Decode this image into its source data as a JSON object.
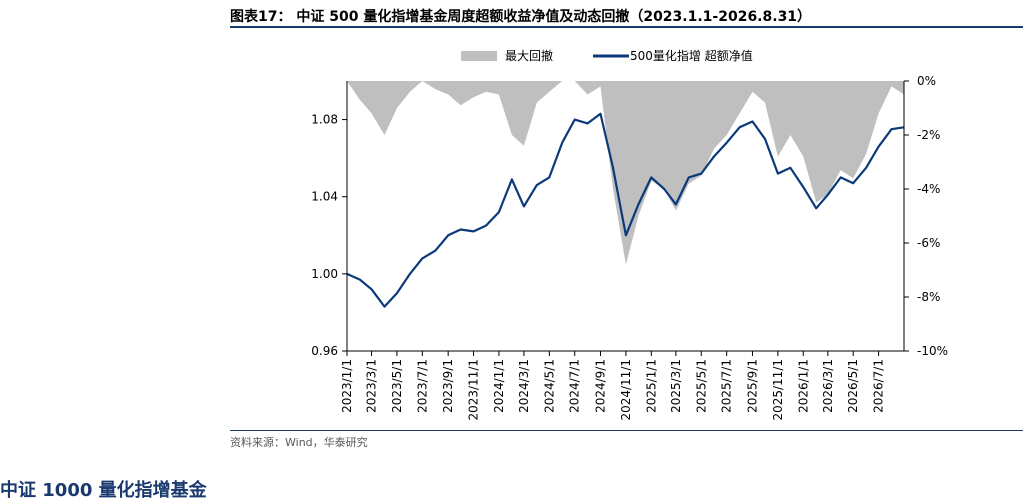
{
  "figure": {
    "title": "图表17： 中证 500 量化指增基金周度超额收益净值及动态回撤（2023.1.1-2026.8.31）",
    "source": "资料来源：Wind，华泰研究",
    "next_heading": "中证 1000 量化指增基金"
  },
  "colors": {
    "drawdown": "#bfbfbf",
    "nav": "#0b3a7a",
    "axis": "#000000",
    "rule": "#1a3a6e"
  },
  "chart_data": {
    "type": "line",
    "title": "",
    "legend_position": "top",
    "grid": false,
    "x_ticks": [
      "2023/1/1",
      "2023/3/1",
      "2023/5/1",
      "2023/7/1",
      "2023/9/1",
      "2023/11/1",
      "2024/1/1",
      "2024/3/1",
      "2024/5/1",
      "2024/7/1",
      "2024/9/1",
      "2024/11/1",
      "2025/1/1",
      "2025/3/1",
      "2025/5/1",
      "2025/7/1",
      "2025/9/1",
      "2025/11/1",
      "2026/1/1",
      "2026/3/1",
      "2026/5/1",
      "2026/7/1"
    ],
    "left_axis": {
      "min": 0.96,
      "max": 1.1,
      "ticks": [
        "0.96",
        "1.00",
        "1.04",
        "1.08"
      ]
    },
    "right_axis": {
      "min": -0.1,
      "max": 0.0,
      "ticks": [
        "0%",
        "-2%",
        "-4%",
        "-6%",
        "-8%",
        "-10%"
      ]
    },
    "series": [
      {
        "name": "最大回撤",
        "kind": "area",
        "axis": "right",
        "x": [
          "2023/1/1",
          "2023/2/1",
          "2023/3/1",
          "2023/4/1",
          "2023/5/1",
          "2023/6/1",
          "2023/7/1",
          "2023/8/1",
          "2023/9/1",
          "2023/10/1",
          "2023/11/1",
          "2023/12/1",
          "2024/1/1",
          "2024/2/1",
          "2024/3/1",
          "2024/4/1",
          "2024/5/1",
          "2024/6/1",
          "2024/7/1",
          "2024/8/1",
          "2024/9/1",
          "2024/10/1",
          "2024/11/1",
          "2024/12/1",
          "2025/1/1",
          "2025/2/1",
          "2025/3/1",
          "2025/4/1",
          "2025/5/1",
          "2025/6/1",
          "2025/7/1",
          "2025/8/1",
          "2025/9/1",
          "2025/10/1",
          "2025/11/1",
          "2025/12/1",
          "2026/1/1",
          "2026/2/1",
          "2026/3/1",
          "2026/4/1",
          "2026/5/1",
          "2026/6/1",
          "2026/7/1",
          "2026/8/1",
          "2026/8/31"
        ],
        "values": [
          0.0,
          -0.007,
          -0.012,
          -0.02,
          -0.01,
          -0.004,
          0.0,
          -0.003,
          -0.005,
          -0.009,
          -0.006,
          -0.004,
          -0.005,
          -0.02,
          -0.024,
          -0.008,
          -0.004,
          0.0,
          0.0,
          -0.005,
          -0.002,
          -0.04,
          -0.068,
          -0.05,
          -0.037,
          -0.04,
          -0.048,
          -0.038,
          -0.035,
          -0.025,
          -0.02,
          -0.012,
          -0.004,
          -0.008,
          -0.028,
          -0.02,
          -0.028,
          -0.045,
          -0.042,
          -0.033,
          -0.036,
          -0.027,
          -0.012,
          -0.002,
          -0.005
        ]
      },
      {
        "name": "500量化指增 超额净值",
        "kind": "line",
        "axis": "left",
        "x": [
          "2023/1/1",
          "2023/2/1",
          "2023/3/1",
          "2023/4/1",
          "2023/5/1",
          "2023/6/1",
          "2023/7/1",
          "2023/8/1",
          "2023/9/1",
          "2023/10/1",
          "2023/11/1",
          "2023/12/1",
          "2024/1/1",
          "2024/2/1",
          "2024/3/1",
          "2024/4/1",
          "2024/5/1",
          "2024/6/1",
          "2024/7/1",
          "2024/8/1",
          "2024/9/1",
          "2024/10/1",
          "2024/11/1",
          "2024/12/1",
          "2025/1/1",
          "2025/2/1",
          "2025/3/1",
          "2025/4/1",
          "2025/5/1",
          "2025/6/1",
          "2025/7/1",
          "2025/8/1",
          "2025/9/1",
          "2025/10/1",
          "2025/11/1",
          "2025/12/1",
          "2026/1/1",
          "2026/2/1",
          "2026/3/1",
          "2026/4/1",
          "2026/5/1",
          "2026/6/1",
          "2026/7/1",
          "2026/8/1",
          "2026/8/31"
        ],
        "values": [
          1.0,
          0.997,
          0.992,
          0.983,
          0.99,
          1.0,
          1.008,
          1.012,
          1.02,
          1.023,
          1.022,
          1.025,
          1.032,
          1.049,
          1.035,
          1.046,
          1.05,
          1.068,
          1.08,
          1.078,
          1.083,
          1.055,
          1.02,
          1.036,
          1.05,
          1.044,
          1.036,
          1.05,
          1.052,
          1.061,
          1.068,
          1.076,
          1.079,
          1.07,
          1.052,
          1.055,
          1.045,
          1.034,
          1.041,
          1.05,
          1.047,
          1.055,
          1.066,
          1.075,
          1.076
        ]
      }
    ]
  }
}
